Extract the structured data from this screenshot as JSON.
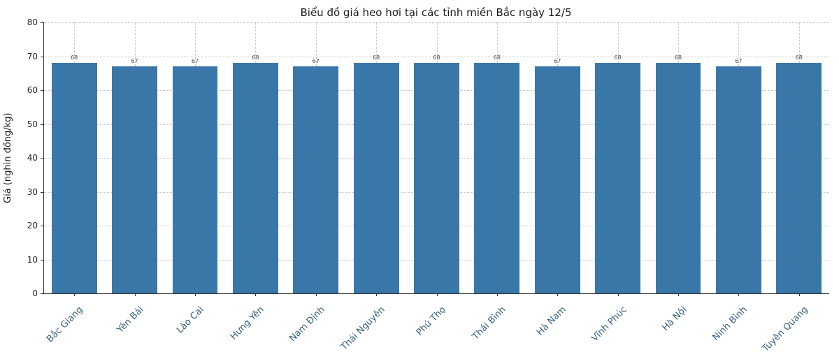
{
  "chart_data": {
    "type": "bar",
    "title": "Biểu đồ giá heo hơi tại các tỉnh miền Bắc ngày 12/5",
    "xlabel": "",
    "ylabel": "Giá (nghìn đồng/kg)",
    "categories": [
      "Bắc Giang",
      "Yên Bái",
      "Lào Cai",
      "Hưng Yên",
      "Nam Định",
      "Thái Nguyên",
      "Phú Thọ",
      "Thái Bình",
      "Hà Nam",
      "Vĩnh Phúc",
      "Hà Nội",
      "Ninh Bình",
      "Tuyên Quang"
    ],
    "values": [
      68,
      67,
      67,
      68,
      67,
      68,
      68,
      68,
      67,
      68,
      68,
      67,
      68
    ],
    "value_labels": [
      "68",
      "67",
      "67",
      "68",
      "67",
      "68",
      "68",
      "68",
      "67",
      "68",
      "68",
      "67",
      "68"
    ],
    "ylim": [
      0,
      80
    ],
    "yticks": [
      0,
      10,
      20,
      30,
      40,
      50,
      60,
      70,
      80
    ],
    "grid": true,
    "grid_style": "dashed",
    "legend": "none",
    "bar_color": "#3a77a9",
    "grid_color": "#cccccc",
    "value_label_color": "#4d4d4d",
    "xtick_label_color": "#35607e"
  }
}
